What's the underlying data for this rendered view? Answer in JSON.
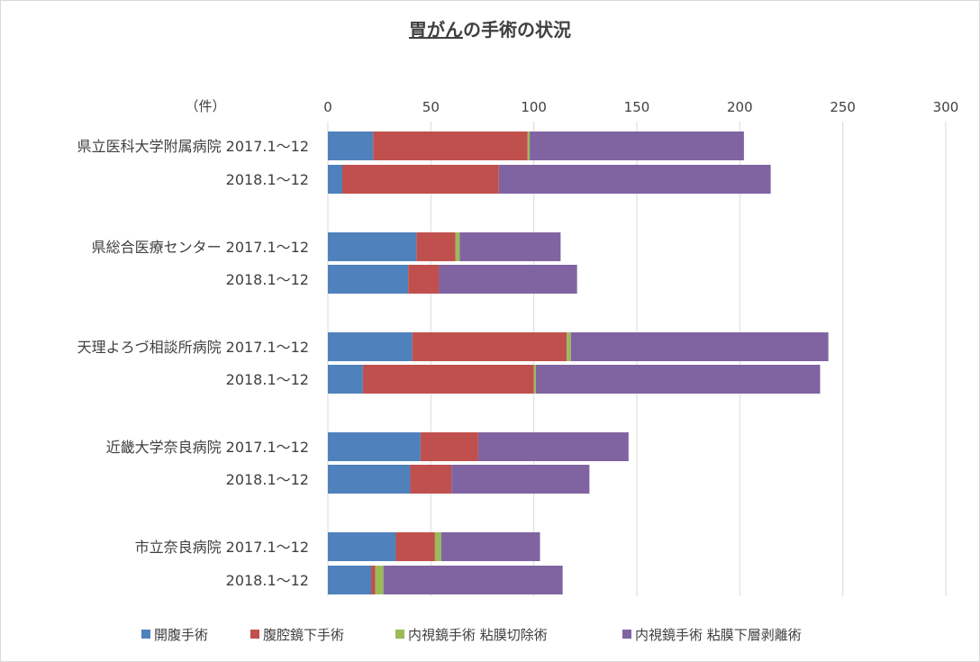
{
  "chart_data": {
    "type": "bar",
    "orientation": "horizontal",
    "stacked": true,
    "title": "胃がんの手術の状況",
    "title_underlined_part": "胃がん",
    "title_rest": "の手術の状況",
    "unit_label": "（件）",
    "xlim": [
      0,
      300
    ],
    "x_ticks": [
      0,
      50,
      100,
      150,
      200,
      250,
      300
    ],
    "grid": true,
    "legend_position": "bottom",
    "groups": [
      {
        "hospital": "県立医科大学附属病院"
      },
      {
        "hospital": "県総合医療センター"
      },
      {
        "hospital": "天理よろづ相談所病院"
      },
      {
        "hospital": "近畿大学奈良病院"
      },
      {
        "hospital": "市立奈良病院"
      }
    ],
    "periods": [
      "2017.1～12",
      "2018.1～12"
    ],
    "categories": [
      "県立医科大学附属病院 2017.1～12",
      "県立医科大学附属病院 2018.1～12",
      "県総合医療センター 2017.1～12",
      "県総合医療センター 2018.1～12",
      "天理よろづ相談所病院 2017.1～12",
      "天理よろづ相談所病院 2018.1～12",
      "近畿大学奈良病院 2017.1～12",
      "近畿大学奈良病院 2018.1～12",
      "市立奈良病院 2017.1～12",
      "市立奈良病院 2018.1～12"
    ],
    "series": [
      {
        "name": "開腹手術",
        "color": "#4f81bd",
        "values": [
          22,
          7,
          43,
          39,
          41,
          17,
          45,
          40,
          33,
          21
        ]
      },
      {
        "name": "腹腔鏡下手術",
        "color": "#c0504d",
        "values": [
          75,
          76,
          19,
          15,
          75,
          83,
          28,
          20,
          19,
          2
        ]
      },
      {
        "name": "内視鏡手術  粘膜切除術",
        "color": "#9bbb59",
        "values": [
          1,
          0,
          2,
          0,
          2,
          1,
          0,
          0,
          3,
          4
        ]
      },
      {
        "name": "内視鏡手術  粘膜下層剥離術",
        "color": "#8064a2",
        "values": [
          104,
          132,
          49,
          67,
          125,
          138,
          73,
          67,
          48,
          87
        ]
      }
    ]
  }
}
